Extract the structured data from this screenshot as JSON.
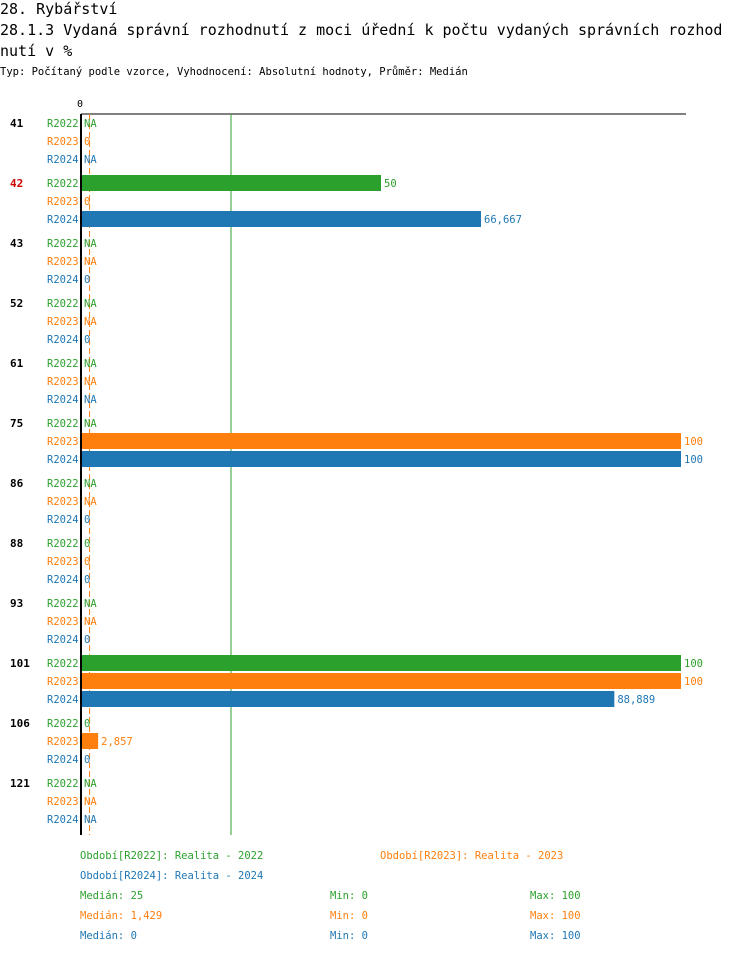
{
  "header": {
    "title_line1": "28. Rybářství",
    "title_line2": "28.1.3 Vydaná správní rozhodnutí z moci úřední  k počtu vydaných správních rozhod",
    "title_line3": "nutí v %",
    "subtitle": "Typ: Počítaný podle vzorce, Vyhodnocení: Absolutní hodnoty, Průměr: Medián"
  },
  "colors": {
    "R2022": "#2ca02c",
    "R2023": "#ff7f0e",
    "R2024": "#1f77b4",
    "highlight": "#cc0000"
  },
  "chart_data": {
    "type": "bar",
    "orientation": "horizontal",
    "axis_zero_label": "0",
    "xlim": [
      0,
      100
    ],
    "highlighted_category": "42",
    "series_names": [
      "R2022",
      "R2023",
      "R2024"
    ],
    "categories": [
      "41",
      "42",
      "43",
      "52",
      "61",
      "75",
      "86",
      "88",
      "93",
      "101",
      "106",
      "121"
    ],
    "values": {
      "R2022": [
        null,
        50,
        null,
        null,
        null,
        null,
        null,
        0,
        null,
        100,
        0,
        null
      ],
      "R2023": [
        0,
        0,
        null,
        null,
        null,
        100,
        null,
        0,
        null,
        100,
        2.857,
        null
      ],
      "R2024": [
        null,
        66.667,
        0,
        0,
        null,
        100,
        0,
        0,
        0,
        88.889,
        0,
        null
      ]
    },
    "labels": {
      "R2022": [
        "NA",
        "50",
        "NA",
        "NA",
        "NA",
        "NA",
        "NA",
        "0",
        "NA",
        "100",
        "0",
        "NA"
      ],
      "R2023": [
        "0",
        "0",
        "NA",
        "NA",
        "NA",
        "100",
        "NA",
        "0",
        "NA",
        "100",
        "2,857",
        "NA"
      ],
      "R2024": [
        "NA",
        "66,667",
        "0",
        "0",
        "NA",
        "100",
        "0",
        "0",
        "0",
        "88,889",
        "0",
        "NA"
      ]
    },
    "medians": {
      "R2022": 25,
      "R2023": 1.429,
      "R2024": 0
    }
  },
  "legend": {
    "period_2022": "Období[R2022]: Realita - 2022",
    "period_2023": "Období[R2023]: Realita - 2023",
    "period_2024": "Období[R2024]: Realita - 2024"
  },
  "stats": [
    {
      "series": "R2022",
      "median": "Medián: 25",
      "min": "Min: 0",
      "max": "Max: 100"
    },
    {
      "series": "R2023",
      "median": "Medián: 1,429",
      "min": "Min: 0",
      "max": "Max: 100"
    },
    {
      "series": "R2024",
      "median": "Medián: 0",
      "min": "Min: 0",
      "max": "Max: 100"
    }
  ]
}
